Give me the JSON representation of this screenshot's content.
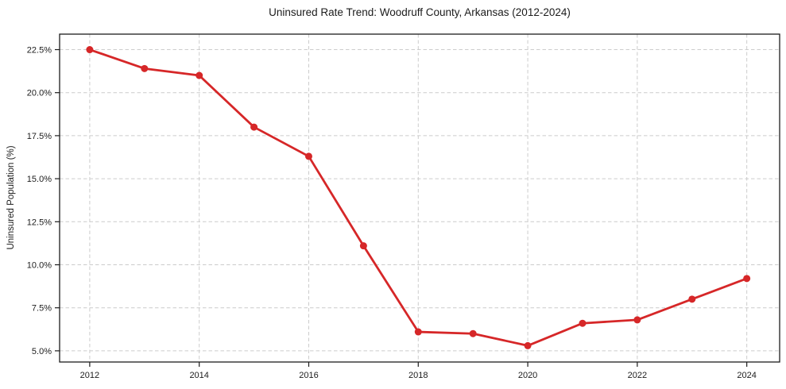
{
  "chart_data": {
    "type": "line",
    "title": "Uninsured Rate Trend: Woodruff County, Arkansas (2012-2024)",
    "xlabel": "",
    "ylabel": "Uninsured Population (%)",
    "x": [
      2012,
      2013,
      2014,
      2015,
      2016,
      2017,
      2018,
      2019,
      2020,
      2021,
      2022,
      2023,
      2024
    ],
    "values": [
      22.5,
      21.4,
      21.0,
      18.0,
      16.3,
      11.1,
      6.1,
      6.0,
      5.3,
      6.6,
      6.8,
      8.0,
      9.2
    ],
    "xlim": [
      2011.45,
      2024.6
    ],
    "ylim": [
      4.35,
      23.4
    ],
    "xticks": {
      "values": [
        2012,
        2014,
        2016,
        2018,
        2020,
        2022,
        2024
      ],
      "labels": [
        "2012",
        "2014",
        "2016",
        "2018",
        "2020",
        "2022",
        "2024"
      ]
    },
    "yticks": {
      "values": [
        5.0,
        7.5,
        10.0,
        12.5,
        15.0,
        17.5,
        20.0,
        22.5
      ],
      "labels": [
        "5.0%",
        "7.5%",
        "10.0%",
        "12.5%",
        "15.0%",
        "17.5%",
        "20.0%",
        "22.5%"
      ]
    },
    "grid": true,
    "grid_style": "dashed",
    "legend_position": "none",
    "marker": "circle",
    "colors": {
      "line": "#d62728",
      "marker": "#d62728",
      "grid": "#cccccc",
      "spine": "#1c1c1c",
      "text": "#1c1c1c",
      "background": "#ffffff"
    }
  }
}
